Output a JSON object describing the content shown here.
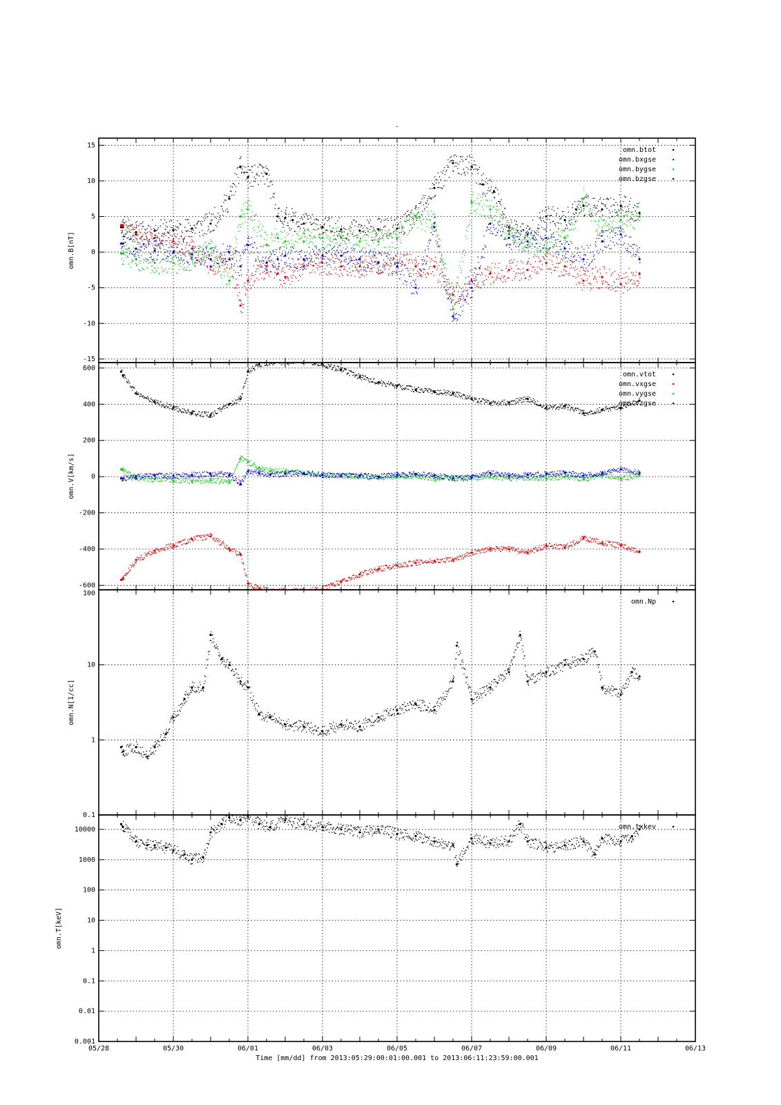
{
  "figure": {
    "title": "-",
    "xlabel": "Time [mm/dd]  from 2013:05:29:00:01:00.001  to  2013:06:11:23:59:00.001"
  },
  "colors": {
    "black": "#000000",
    "red": "#dd0000",
    "green": "#11cc11",
    "blue": "#0000dd"
  },
  "chart_data": [
    {
      "type": "scatter",
      "ylabel": "omn.B[nT]",
      "ylim": [
        -15.5,
        16
      ],
      "yscale": "linear",
      "yticks": [
        -15,
        -10,
        -5,
        0,
        5,
        10,
        15
      ],
      "ytick_labels": [
        "-15",
        "-10",
        "-5",
        "0",
        "5",
        "10",
        "15"
      ],
      "legend": {
        "placement": "top-right",
        "entries": [
          "omn.btot",
          "omn.bxgse",
          "omn.bygse",
          "omn.bzgse"
        ]
      },
      "series": [
        {
          "name": "omn.btot",
          "color": "#000000",
          "x": [
            0.6,
            0.65,
            1.0,
            1.5,
            2.0,
            2.5,
            3.0,
            3.5,
            3.8,
            4.0,
            4.5,
            4.8,
            5.0,
            5.2,
            5.5,
            6.0,
            6.5,
            7.0,
            7.5,
            8.0,
            8.5,
            9.0,
            9.5,
            10.0,
            10.3,
            10.6,
            11.0,
            11.5,
            12.0,
            12.5,
            12.8,
            13.0,
            13.5,
            14.0,
            14.5
          ],
          "y": [
            3.5,
            3.5,
            2.8,
            3.0,
            3.1,
            3.3,
            4.0,
            7.5,
            12,
            10.5,
            11,
            5,
            4.8,
            4.5,
            4.0,
            3.5,
            3.2,
            3.0,
            3.2,
            3.3,
            5.0,
            9.0,
            12.5,
            12.0,
            9.5,
            8.5,
            3.5,
            2.5,
            5,
            4.5,
            6,
            6.5,
            6.0,
            6.5,
            5.5
          ]
        },
        {
          "name": "omn.bxgse",
          "color": "#dd0000",
          "x": [
            0.6,
            0.65,
            1.0,
            1.5,
            2.0,
            2.5,
            3.0,
            3.5,
            3.8,
            4.0,
            4.5,
            4.8,
            5.0,
            5.5,
            6.0,
            6.5,
            7.0,
            7.5,
            8.0,
            8.5,
            9.0,
            9.5,
            10.0,
            10.5,
            11.0,
            11.5,
            12.0,
            12.5,
            13.0,
            13.5,
            14.0,
            14.5
          ],
          "y": [
            3.8,
            3.8,
            2.5,
            2.0,
            1.5,
            0.5,
            -2.0,
            -1.0,
            -7.5,
            -4.0,
            -2.0,
            -3.0,
            -3.5,
            -2.0,
            -1.5,
            -2.0,
            -2.0,
            -1.5,
            -1.5,
            -2.0,
            -2.0,
            -6.0,
            -4.0,
            -3.0,
            -2.5,
            -2.5,
            -1.5,
            -2.0,
            -4.0,
            -3.5,
            -4.5,
            -3.0
          ]
        },
        {
          "name": "omn.bygse",
          "color": "#11cc11",
          "x": [
            0.6,
            0.65,
            1.0,
            1.5,
            2.0,
            2.5,
            3.0,
            3.5,
            3.8,
            4.0,
            4.5,
            4.8,
            5.0,
            5.5,
            6.0,
            6.5,
            7.0,
            7.5,
            8.0,
            8.5,
            9.0,
            9.5,
            10.0,
            10.5,
            11.0,
            11.5,
            12.0,
            12.5,
            13.0,
            13.5,
            14.0,
            14.5
          ],
          "y": [
            -0.2,
            -0.2,
            -1.0,
            -1.5,
            -1.5,
            -1.0,
            0.5,
            -4.0,
            5.0,
            6.0,
            1.0,
            2.0,
            1.5,
            1.5,
            2.0,
            2.0,
            1.5,
            1.5,
            2.0,
            5.0,
            4.0,
            -8.0,
            7.0,
            6.0,
            2.5,
            1.0,
            0.5,
            2.0,
            7.5,
            3.0,
            4.5,
            5.0
          ]
        },
        {
          "name": "omn.bzgse",
          "color": "#0000dd",
          "x": [
            0.6,
            0.65,
            1.0,
            1.5,
            2.0,
            2.5,
            3.0,
            3.5,
            3.8,
            4.0,
            4.5,
            4.8,
            5.0,
            5.5,
            6.0,
            6.5,
            7.0,
            7.5,
            8.0,
            8.5,
            9.0,
            9.5,
            10.0,
            10.5,
            11.0,
            11.5,
            12.0,
            12.5,
            13.0,
            13.5,
            14.0,
            14.5
          ],
          "y": [
            1.2,
            1.2,
            0.5,
            0.2,
            0.0,
            -0.3,
            -1.0,
            0.0,
            -2.0,
            1.0,
            -1.5,
            -1.0,
            -0.5,
            -1.0,
            -0.5,
            -0.5,
            -1.0,
            -1.5,
            -2.0,
            -5.0,
            3.5,
            -9.0,
            -5.0,
            4.0,
            2.0,
            1.5,
            2.0,
            0.5,
            -1.0,
            1.5,
            2.5,
            -1.0
          ]
        }
      ]
    },
    {
      "type": "scatter",
      "ylabel": "omn.V[km/s]",
      "ylim": [
        -625,
        630
      ],
      "yscale": "linear",
      "yticks": [
        -600,
        -400,
        -200,
        0,
        200,
        400,
        600
      ],
      "ytick_labels": [
        "-600",
        "-400",
        "-200",
        "0",
        "200",
        "400",
        "600"
      ],
      "legend": {
        "placement": "top-right",
        "entries": [
          "omn.vtot",
          "omn.vxgse",
          "omn.vygse",
          "omn.vzgse"
        ]
      },
      "series": [
        {
          "name": "omn.vtot",
          "color": "#000000",
          "x": [
            0.6,
            0.65,
            1.0,
            1.5,
            2.0,
            2.5,
            3.0,
            3.5,
            3.8,
            4.0,
            4.3,
            4.6,
            5.0,
            5.5,
            6.0,
            6.5,
            7.0,
            7.5,
            8.0,
            8.5,
            9.0,
            9.5,
            10.0,
            10.5,
            11.0,
            11.5,
            12.0,
            12.5,
            13.0,
            13.5,
            14.0,
            14.5
          ],
          "y": [
            580,
            560,
            460,
            410,
            380,
            350,
            340,
            400,
            430,
            580,
            620,
            630,
            630,
            640,
            620,
            590,
            550,
            520,
            500,
            480,
            470,
            460,
            430,
            405,
            410,
            430,
            380,
            390,
            350,
            370,
            380,
            420
          ]
        },
        {
          "name": "omn.vxgse",
          "color": "#dd0000",
          "x": [
            0.6,
            0.65,
            1.0,
            1.5,
            2.0,
            2.5,
            3.0,
            3.5,
            3.8,
            4.0,
            4.3,
            4.6,
            5.0,
            5.5,
            6.0,
            6.5,
            7.0,
            7.5,
            8.0,
            8.5,
            9.0,
            9.5,
            10.0,
            10.5,
            11.0,
            11.5,
            12.0,
            12.5,
            13.0,
            13.5,
            14.0,
            14.5
          ],
          "y": [
            -570,
            -560,
            -460,
            -410,
            -380,
            -345,
            -330,
            -400,
            -430,
            -590,
            -620,
            -630,
            -630,
            -630,
            -620,
            -580,
            -540,
            -510,
            -490,
            -475,
            -465,
            -460,
            -420,
            -400,
            -400,
            -420,
            -380,
            -390,
            -340,
            -365,
            -380,
            -415
          ]
        },
        {
          "name": "omn.vygse",
          "color": "#11cc11",
          "x": [
            0.6,
            0.65,
            1.0,
            1.5,
            2.0,
            2.5,
            3.0,
            3.5,
            3.8,
            4.0,
            4.3,
            4.6,
            5.0,
            5.5,
            6.0,
            6.5,
            7.0,
            7.5,
            8.0,
            8.5,
            9.0,
            9.5,
            10.0,
            10.5,
            11.0,
            11.5,
            12.0,
            12.5,
            13.0,
            13.5,
            14.0,
            14.5
          ],
          "y": [
            40,
            35,
            -10,
            -15,
            -20,
            -25,
            -20,
            -30,
            100,
            80,
            50,
            30,
            30,
            20,
            10,
            5,
            0,
            -5,
            0,
            5,
            -10,
            -5,
            -10,
            0,
            -10,
            -5,
            -10,
            0,
            -15,
            10,
            -10,
            10
          ]
        },
        {
          "name": "omn.vzgse",
          "color": "#0000dd",
          "x": [
            0.6,
            0.65,
            1.0,
            1.5,
            2.0,
            2.5,
            3.0,
            3.5,
            3.8,
            4.0,
            4.3,
            4.6,
            5.0,
            5.5,
            6.0,
            6.5,
            7.0,
            7.5,
            8.0,
            8.5,
            9.0,
            9.5,
            10.0,
            10.5,
            11.0,
            11.5,
            12.0,
            12.5,
            13.0,
            13.5,
            14.0,
            14.5
          ],
          "y": [
            -10,
            -10,
            0,
            5,
            5,
            10,
            15,
            10,
            -40,
            30,
            20,
            10,
            15,
            20,
            10,
            5,
            5,
            0,
            10,
            15,
            5,
            -10,
            -5,
            20,
            5,
            10,
            15,
            20,
            5,
            20,
            40,
            20
          ]
        }
      ]
    },
    {
      "type": "scatter",
      "ylabel": "omn.N[1/cc]",
      "ylim": [
        0.1,
        100
      ],
      "yscale": "log",
      "yticks": [
        0.1,
        1,
        10,
        100
      ],
      "ytick_labels": [
        "0.1",
        "1",
        "10",
        "100"
      ],
      "legend": {
        "placement": "top-right",
        "entries": [
          "omn.Np"
        ]
      },
      "series": [
        {
          "name": "omn.Np",
          "color": "#000000",
          "x": [
            0.6,
            0.65,
            1.0,
            1.3,
            1.5,
            1.8,
            2.0,
            2.3,
            2.5,
            2.8,
            3.0,
            3.3,
            3.5,
            3.8,
            4.0,
            4.3,
            4.6,
            5.0,
            5.5,
            6.0,
            6.5,
            7.0,
            7.5,
            8.0,
            8.5,
            9.0,
            9.5,
            9.6,
            10.0,
            10.5,
            11.0,
            11.3,
            11.5,
            12.0,
            12.5,
            13.0,
            13.3,
            13.5,
            14.0,
            14.3,
            14.5
          ],
          "y": [
            0.8,
            0.7,
            0.8,
            0.6,
            0.8,
            1.2,
            2.0,
            3.5,
            5.0,
            5.0,
            25,
            12,
            10,
            6,
            5,
            2.2,
            2.0,
            1.6,
            1.5,
            1.3,
            1.6,
            1.5,
            2.0,
            2.5,
            3.0,
            2.5,
            6.0,
            18,
            3.5,
            5.0,
            8.0,
            25,
            6.0,
            8.0,
            10,
            12,
            15,
            5.0,
            4.0,
            8.0,
            7.0
          ]
        }
      ]
    },
    {
      "type": "scatter",
      "ylabel": "omn.T[keV]",
      "ylim": [
        0.001,
        30000
      ],
      "yscale": "log",
      "yticks": [
        0.001,
        0.01,
        0.1,
        1,
        10,
        100,
        1000,
        10000
      ],
      "ytick_labels": [
        "0.001",
        "0.01",
        "0.1",
        "1",
        "10",
        "100",
        "1000",
        "10000"
      ],
      "legend": {
        "placement": "top-right",
        "entries": [
          "omn.txkev"
        ]
      },
      "series": [
        {
          "name": "omn.txkev",
          "color": "#000000",
          "x": [
            0.6,
            0.65,
            1.0,
            1.3,
            1.5,
            1.8,
            2.0,
            2.3,
            2.5,
            2.8,
            3.0,
            3.3,
            3.5,
            3.8,
            4.0,
            4.3,
            4.6,
            5.0,
            5.5,
            6.0,
            6.5,
            7.0,
            7.5,
            8.0,
            8.5,
            9.0,
            9.5,
            9.6,
            10.0,
            10.5,
            11.0,
            11.3,
            11.5,
            12.0,
            12.5,
            13.0,
            13.3,
            13.5,
            14.0,
            14.3,
            14.5
          ],
          "y": [
            15000,
            12000,
            4000,
            3000,
            3000,
            2500,
            2000,
            1500,
            1000,
            1200,
            8000,
            15000,
            25000,
            20000,
            28000,
            15000,
            12000,
            20000,
            15000,
            12000,
            10000,
            8000,
            10000,
            7000,
            6000,
            4000,
            3000,
            700,
            5000,
            3500,
            4000,
            15000,
            4000,
            2500,
            3000,
            4000,
            1500,
            5000,
            4000,
            6000,
            10000
          ]
        }
      ]
    }
  ],
  "xaxis": {
    "domain": [
      0,
      16
    ],
    "tick_values": [
      0,
      2,
      4,
      6,
      8,
      10,
      12,
      14,
      16
    ],
    "tick_labels": [
      "05/28",
      "05/30",
      "06/01",
      "06/03",
      "06/05",
      "06/07",
      "06/09",
      "06/11",
      "06/13"
    ]
  }
}
